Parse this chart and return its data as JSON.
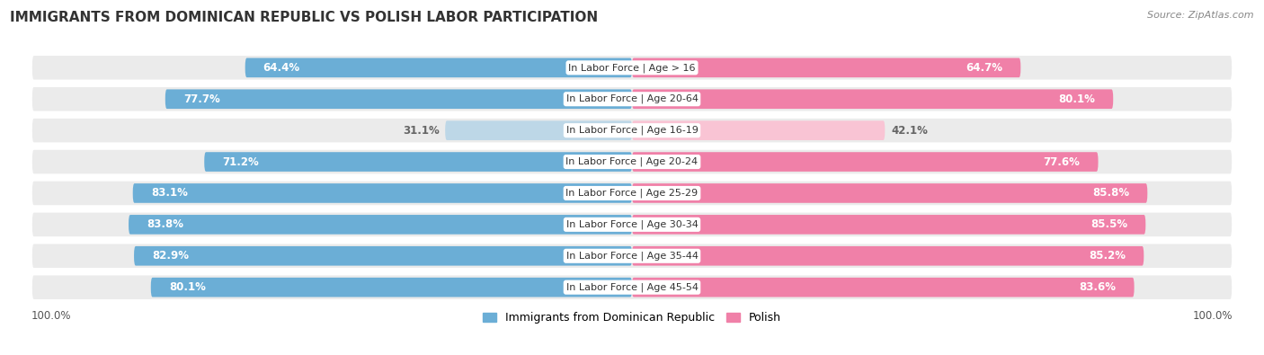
{
  "title": "IMMIGRANTS FROM DOMINICAN REPUBLIC VS POLISH LABOR PARTICIPATION",
  "source": "Source: ZipAtlas.com",
  "categories": [
    "In Labor Force | Age > 16",
    "In Labor Force | Age 20-64",
    "In Labor Force | Age 16-19",
    "In Labor Force | Age 20-24",
    "In Labor Force | Age 25-29",
    "In Labor Force | Age 30-34",
    "In Labor Force | Age 35-44",
    "In Labor Force | Age 45-54"
  ],
  "dominican_values": [
    64.4,
    77.7,
    31.1,
    71.2,
    83.1,
    83.8,
    82.9,
    80.1
  ],
  "polish_values": [
    64.7,
    80.1,
    42.1,
    77.6,
    85.8,
    85.5,
    85.2,
    83.6
  ],
  "dominican_color": "#6BAED6",
  "dominican_color_light": "#BDD7E7",
  "polish_color": "#F080A8",
  "polish_color_light": "#F9C4D4",
  "row_bg_color": "#EBEBEB",
  "title_color": "#333333",
  "source_color": "#888888",
  "label_white": "#FFFFFF",
  "label_dark": "#666666",
  "title_fontsize": 11,
  "bar_fontsize": 8.5,
  "cat_fontsize": 8,
  "legend_fontsize": 9,
  "max_value": 100.0,
  "threshold": 50
}
